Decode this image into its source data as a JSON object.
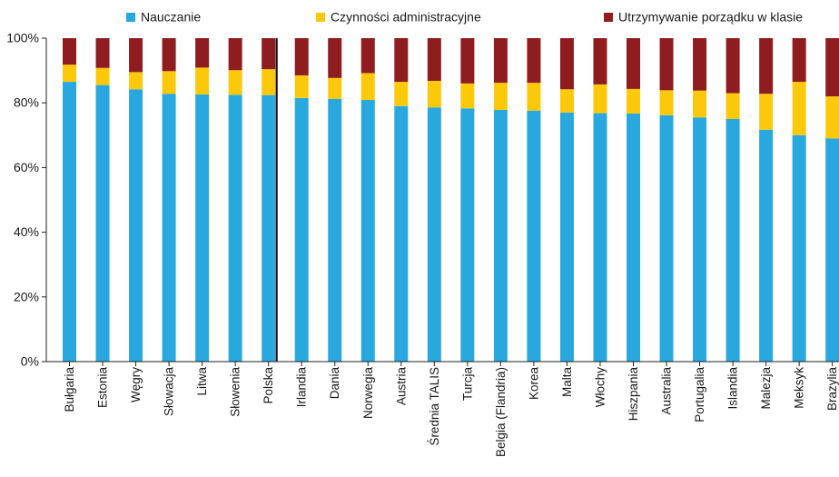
{
  "chart_data": {
    "type": "bar",
    "stacked": true,
    "categories": [
      "Bułgaria",
      "Estonia",
      "Węgry",
      "Słowacja",
      "Litwa",
      "Słowenia",
      "Polska",
      "Irlandia",
      "Dania",
      "Norwegia",
      "Austria",
      "Średnia TALIS",
      "Turcja",
      "Belgia (Flandria)",
      "Korea",
      "Malta",
      "Włochy",
      "Hiszpania",
      "Australia",
      "Portugalia",
      "Islandia",
      "Malezja",
      "Meksyk",
      "Brazylia"
    ],
    "series": [
      {
        "name": "Nauczanie",
        "color": "#29a8e0",
        "values": [
          86.5,
          85.5,
          84.2,
          82.8,
          82.6,
          82.5,
          82.4,
          81.5,
          81.2,
          80.9,
          79.0,
          78.6,
          78.3,
          77.8,
          77.6,
          77.0,
          76.8,
          76.7,
          76.2,
          75.5,
          75.0,
          71.7,
          70.0,
          69.0
        ]
      },
      {
        "name": "Czynności administracyjne",
        "color": "#fcc90a",
        "values": [
          5.3,
          5.3,
          5.3,
          7.0,
          8.3,
          7.6,
          8.0,
          7.0,
          6.5,
          8.3,
          7.5,
          8.2,
          7.7,
          8.4,
          8.6,
          7.2,
          8.9,
          7.6,
          7.7,
          8.3,
          8.0,
          11.1,
          16.5,
          13.0
        ]
      },
      {
        "name": "Utrzymywanie porządku w klasie",
        "color": "#8f1c1f",
        "values": [
          8.2,
          9.2,
          10.5,
          10.2,
          9.1,
          9.9,
          9.6,
          11.5,
          12.3,
          10.8,
          13.5,
          13.2,
          14.0,
          13.8,
          13.8,
          15.8,
          14.3,
          15.7,
          16.1,
          16.2,
          17.0,
          17.2,
          13.5,
          18.0
        ]
      }
    ],
    "highlight_category": "Polska",
    "ylim": [
      0,
      100
    ],
    "yticks": [
      "0%",
      "20%",
      "40%",
      "60%",
      "80%",
      "100%"
    ],
    "legend_position": "top",
    "grid": false
  }
}
